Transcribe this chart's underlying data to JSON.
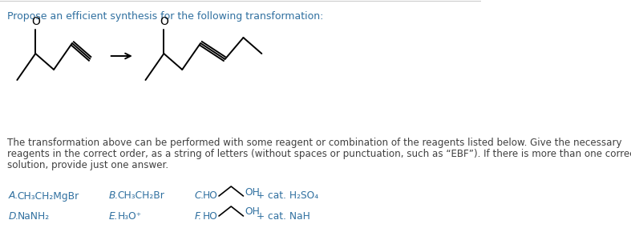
{
  "title": "Propose an efficient synthesis for the following transformation:",
  "title_color": "#3070A0",
  "body_text_line1": "The transformation above can be performed with some reagent or combination of the reagents listed below. Give the necessary",
  "body_text_line2": "reagents in the correct order, as a string of letters (without spaces or punctuation, such as “EBF”). If there is more than one correct",
  "body_text_line3": "solution, provide just one answer.",
  "body_color": "#404040",
  "reagent_color": "#3070A0",
  "background_color": "#ffffff",
  "figsize": [
    7.87,
    3.15
  ],
  "dpi": 100,
  "mol_lw": 1.4,
  "mol_color": "#000000"
}
